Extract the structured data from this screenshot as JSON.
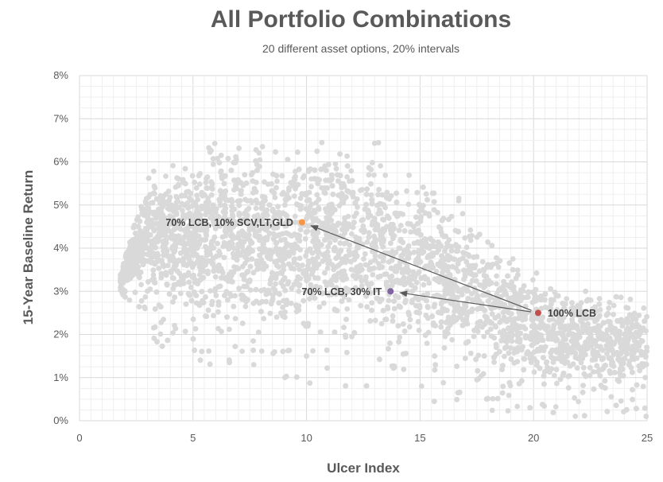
{
  "chart_data": {
    "type": "scatter",
    "title": "All Portfolio Combinations",
    "subtitle": "20 different asset options, 20% intervals",
    "xlabel": "Ulcer Index",
    "ylabel": "15-Year Baseline Return",
    "xlim": [
      0,
      25
    ],
    "ylim": [
      0,
      0.08
    ],
    "x_ticks": [
      "0",
      "5",
      "10",
      "15",
      "20",
      "25"
    ],
    "y_ticks": [
      "0%",
      "1%",
      "2%",
      "3%",
      "4%",
      "5%",
      "6%",
      "7%",
      "8%"
    ],
    "grid": true,
    "background_cloud": {
      "color": "#d9d9d9",
      "description_points": "thousands of gray portfolio combinations",
      "envelope_upper": [
        [
          1.8,
          0.035
        ],
        [
          2.5,
          0.05
        ],
        [
          3,
          0.06
        ],
        [
          4,
          0.065
        ],
        [
          5,
          0.068
        ],
        [
          6,
          0.07
        ],
        [
          7,
          0.069
        ],
        [
          8,
          0.068
        ],
        [
          10,
          0.068
        ],
        [
          12,
          0.068
        ],
        [
          13,
          0.067
        ],
        [
          14,
          0.064
        ],
        [
          15,
          0.06
        ],
        [
          16,
          0.057
        ],
        [
          17,
          0.053
        ],
        [
          18,
          0.047
        ],
        [
          19,
          0.042
        ],
        [
          20,
          0.038
        ],
        [
          21,
          0.036
        ],
        [
          22,
          0.034
        ],
        [
          23,
          0.032
        ],
        [
          24,
          0.031
        ],
        [
          25,
          0.029
        ]
      ],
      "envelope_lower": [
        [
          1.8,
          0.03
        ],
        [
          2.5,
          0.025
        ],
        [
          3,
          0.02
        ],
        [
          4,
          0.015
        ],
        [
          5,
          0.01
        ],
        [
          6,
          0.012
        ],
        [
          8,
          0.01
        ],
        [
          10,
          0.008
        ],
        [
          12,
          0.008
        ],
        [
          14,
          0.006
        ],
        [
          16,
          0.003
        ],
        [
          18,
          0.002
        ],
        [
          20,
          0.001
        ],
        [
          22,
          0.001
        ],
        [
          24,
          0.001
        ],
        [
          25,
          0.001
        ]
      ]
    },
    "highlights": [
      {
        "name": "70% LCB, 10% SCV,LT,GLD",
        "x": 9.8,
        "y": 0.046,
        "color": "#f79646",
        "label_side": "left"
      },
      {
        "name": "70% LCB, 30% IT",
        "x": 13.7,
        "y": 0.03,
        "color": "#8064a2",
        "label_side": "left"
      },
      {
        "name": "100% LCB",
        "x": 20.2,
        "y": 0.025,
        "color": "#c0504d",
        "label_side": "right"
      }
    ],
    "arrows": [
      {
        "from": "100% LCB",
        "to": "70% LCB, 10% SCV,LT,GLD"
      },
      {
        "from": "100% LCB",
        "to": "70% LCB, 30% IT"
      }
    ]
  }
}
